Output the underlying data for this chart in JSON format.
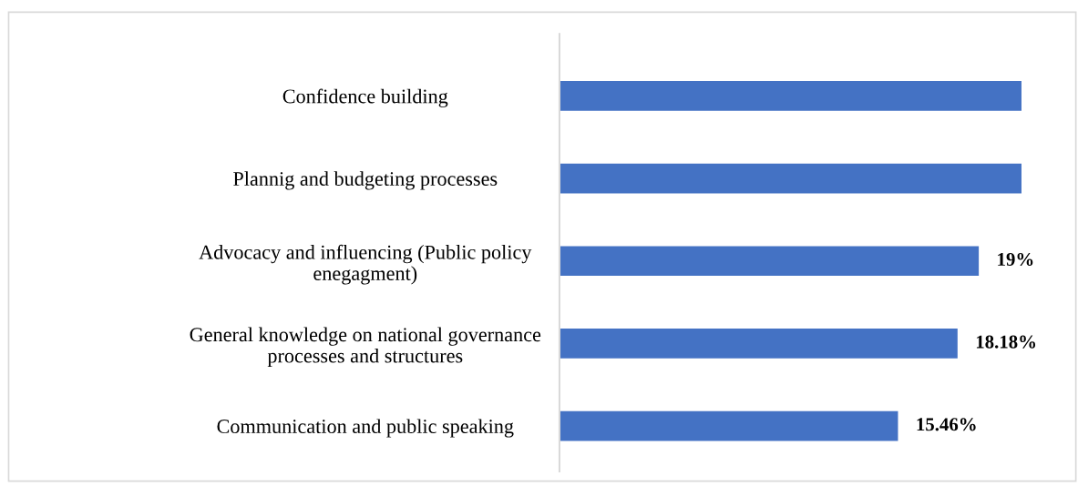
{
  "chart_data": {
    "type": "bar",
    "orientation": "horizontal",
    "categories": [
      "Confidence building",
      "Plannig and budgeting processes",
      "Advocacy and influencing (Public policy\nenegagment)",
      "General knowledge on national governance\nprocesses and structures",
      "Communication and public speaking"
    ],
    "values": [
      21.1,
      21.1,
      19.15,
      18.18,
      15.46
    ],
    "value_labels": [
      null,
      null,
      "19%",
      "18.18%",
      "15.46%"
    ],
    "color": "#4472c4",
    "tick_labels": "y",
    "grid": false,
    "legend": false
  }
}
